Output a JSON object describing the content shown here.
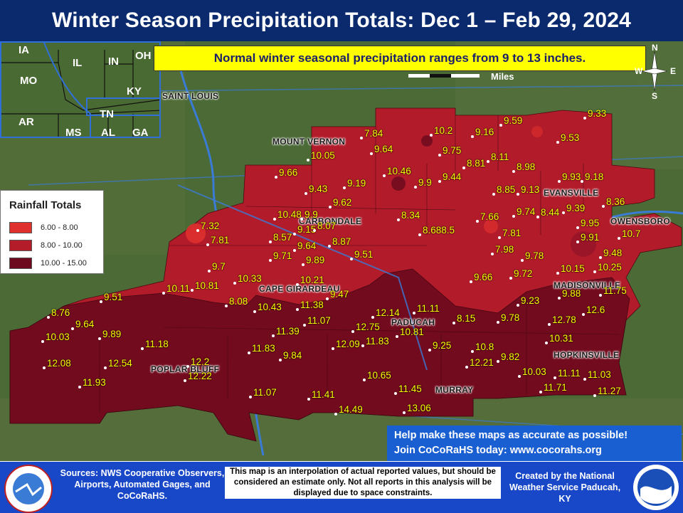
{
  "title": "Winter Season Precipitation Totals: Dec 1 – Feb 29, 2024",
  "normal_note": "Normal winter seasonal precipitation ranges from 9 to 13 inches.",
  "scale_label": "Miles",
  "compass": {
    "n": "N",
    "s": "S",
    "e": "E",
    "w": "W"
  },
  "inset_states": [
    "IA",
    "IL",
    "IN",
    "OH",
    "MO",
    "KY",
    "AR",
    "TN",
    "MS",
    "AL",
    "GA"
  ],
  "legend": {
    "title": "Rainfall Totals",
    "items": [
      {
        "label": "6.00 - 8.00",
        "color": "#e0302e"
      },
      {
        "label": "8.00 - 10.00",
        "color": "#b51c2a"
      },
      {
        "label": "10.00 - 15.00",
        "color": "#6e0a1e"
      }
    ]
  },
  "cities": [
    "SAINT LOUIS",
    "MOUNT VERNON",
    "CARBONDALE",
    "EVANSVILLE",
    "OWENSBORO",
    "CAPE GIRARDEAU",
    "MADISONVILLE",
    "PADUCAH",
    "HOPKINSVILLE",
    "POPLAR BLUFF",
    "MURRAY"
  ],
  "values": [
    "9.33",
    "9.59",
    "9.16",
    "10.2",
    "9.53",
    "7.84",
    "9.75",
    "10.05",
    "9.64",
    "8.11",
    "8.81",
    "8.98",
    "9.66",
    "10.46",
    "9.44",
    "9.93",
    "9.18",
    "9.19",
    "9.9",
    "9.43",
    "8.85",
    "9.13",
    "8.36",
    "9.62",
    "9.74",
    "8.44",
    "9.39",
    "10.48",
    "9.9",
    "8.34",
    "7.66",
    "9.95",
    "7.32",
    "9.15",
    "8.07",
    "8.688.5",
    "10.7",
    "7.81",
    "8.57",
    "9.64",
    "8.87",
    "7.81",
    "9.91",
    "9.71",
    "9.89",
    "9.51",
    "7.98",
    "9.78",
    "9.48",
    "9.7",
    "9.66",
    "9.72",
    "10.15",
    "10.25",
    "10.33",
    "10.21",
    "9.47",
    "9.88",
    "11.75",
    "10.11",
    "10.81",
    "9.23",
    "9.51",
    "8.08",
    "10.43",
    "11.38",
    "12.14",
    "11.11",
    "12.6",
    "8.76",
    "9.64",
    "11.07",
    "8.15",
    "9.78",
    "12.78",
    "10.03",
    "9.89",
    "11.39",
    "12.75",
    "10.81",
    "10.31",
    "12.09",
    "11.83",
    "9.25",
    "11.18",
    "11.83",
    "10.8",
    "9.84",
    "9.82",
    "12.08",
    "12.54",
    "12.2",
    "12.21",
    "10.03",
    "11.11",
    "11.03",
    "11.93",
    "12.22",
    "10.65",
    "11.71",
    "11.27",
    "11.07",
    "11.41",
    "11.45",
    "14.49",
    "13.06"
  ],
  "cocorahs": {
    "line1": "Help make these maps as accurate as possible!",
    "line2": "Join CoCoRaHS today: www.cocorahs.org"
  },
  "footer": {
    "sources": "Sources: NWS Cooperative Observers, Airports, Automated Gages, and CoCoRaHS.",
    "note": "This map is an interpolation of actual reported values, but should be considered an estimate only. Not all reports in this analysis will be displayed due to space constraints.",
    "created": "Created by the National Weather Service Paducah, KY"
  }
}
